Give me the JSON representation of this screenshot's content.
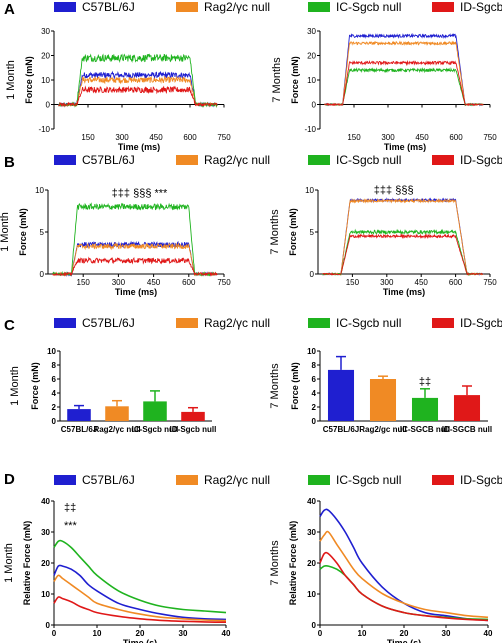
{
  "panels": [
    {
      "letter": "A"
    },
    {
      "letter": "B"
    },
    {
      "letter": "C"
    },
    {
      "letter": "D"
    }
  ],
  "legend": [
    {
      "name": "C57BL/6J",
      "color": "#1f1fd0"
    },
    {
      "name": "Rag2/γc null",
      "color": "#f08a24"
    },
    {
      "name": "IC-Sgcb null",
      "color": "#1fb31f"
    },
    {
      "name": "ID-Sgcb null",
      "color": "#e01818"
    }
  ],
  "chart_data": [
    {
      "id": "A1",
      "panel": "A",
      "type": "line",
      "sidelabel": "1 Month",
      "xlabel": "Time (ms)",
      "ylabel": "Force (mN)",
      "xlim": [
        0,
        750
      ],
      "ylim": [
        -10,
        30
      ],
      "xticks": [
        150,
        300,
        450,
        600,
        750
      ],
      "yticks": [
        -10,
        0,
        10,
        20,
        30
      ],
      "twitch": {
        "rise_start": 100,
        "rise_end": 125,
        "fall_start": 600,
        "fall_end": 625
      },
      "series": [
        {
          "name": "C57BL/6J",
          "plateau": 12,
          "noise": 1.2
        },
        {
          "name": "Rag2/γc null",
          "plateau": 10,
          "noise": 1.2
        },
        {
          "name": "IC-Sgcb null",
          "plateau": 19,
          "noise": 1.5
        },
        {
          "name": "ID-Sgcb null",
          "plateau": 6,
          "noise": 1.2
        }
      ]
    },
    {
      "id": "A2",
      "panel": "A",
      "type": "line",
      "sidelabel": "7 Months",
      "xlabel": "Time (ms)",
      "ylabel": "Force (mN)",
      "xlim": [
        0,
        750
      ],
      "ylim": [
        -10,
        30
      ],
      "xticks": [
        150,
        300,
        450,
        600,
        750
      ],
      "yticks": [
        -10,
        0,
        10,
        20,
        30
      ],
      "twitch": {
        "rise_start": 100,
        "rise_end": 130,
        "fall_start": 600,
        "fall_end": 640
      },
      "series": [
        {
          "name": "C57BL/6J",
          "plateau": 28,
          "noise": 0.6
        },
        {
          "name": "Rag2/γc null",
          "plateau": 25,
          "noise": 0.6
        },
        {
          "name": "IC-Sgcb null",
          "plateau": 14,
          "noise": 0.6
        },
        {
          "name": "ID-Sgcb null",
          "plateau": 17,
          "noise": 0.6
        }
      ]
    },
    {
      "id": "B1",
      "panel": "B",
      "type": "line",
      "sidelabel": "1 Month",
      "xlabel": "Time (ms)",
      "ylabel": "Force (mN)",
      "xlim": [
        0,
        750
      ],
      "ylim": [
        0,
        10
      ],
      "xticks": [
        150,
        300,
        450,
        600,
        750
      ],
      "yticks": [
        0,
        5,
        10
      ],
      "annotation": "‡‡‡  §§§    ***",
      "annotation_x": 390,
      "annotation_y": 9.2,
      "twitch": {
        "rise_start": 100,
        "rise_end": 125,
        "fall_start": 600,
        "fall_end": 625
      },
      "series": [
        {
          "name": "C57BL/6J",
          "plateau": 3.5,
          "noise": 0.3
        },
        {
          "name": "Rag2/γc null",
          "plateau": 3.3,
          "noise": 0.3
        },
        {
          "name": "IC-Sgcb null",
          "plateau": 8,
          "noise": 0.35
        },
        {
          "name": "ID-Sgcb null",
          "plateau": 1.6,
          "noise": 0.3
        }
      ]
    },
    {
      "id": "B2",
      "panel": "B",
      "type": "line",
      "sidelabel": "7 Months",
      "xlabel": "Time (ms)",
      "ylabel": "Force (mN)",
      "xlim": [
        0,
        750
      ],
      "ylim": [
        0,
        10
      ],
      "xticks": [
        150,
        300,
        450,
        600,
        750
      ],
      "yticks": [
        0,
        5,
        10
      ],
      "annotation": "‡‡‡  §§§",
      "annotation_x": 330,
      "annotation_y": 9.6,
      "twitch": {
        "rise_start": 100,
        "rise_end": 140,
        "fall_start": 600,
        "fall_end": 650
      },
      "series": [
        {
          "name": "C57BL/6J",
          "plateau": 8.8,
          "noise": 0.15
        },
        {
          "name": "Rag2/γc null",
          "plateau": 8.7,
          "noise": 0.15
        },
        {
          "name": "IC-Sgcb null",
          "plateau": 5,
          "noise": 0.2
        },
        {
          "name": "ID-Sgcb null",
          "plateau": 4.5,
          "noise": 0.15
        }
      ]
    },
    {
      "id": "C1",
      "panel": "C",
      "type": "bar",
      "sidelabel": "1 Month",
      "ylabel": "Force (mN)",
      "ylim": [
        0,
        10
      ],
      "yticks": [
        0,
        2,
        4,
        6,
        8,
        10
      ],
      "categories": [
        "C57BL/6J",
        "Rag2/γc null",
        "IC-Sgcb null",
        "ID-Sgcb null"
      ],
      "values": [
        1.7,
        2.1,
        2.8,
        1.3
      ],
      "errors": [
        0.5,
        0.8,
        1.5,
        0.6
      ]
    },
    {
      "id": "C2",
      "panel": "C",
      "type": "bar",
      "sidelabel": "7 Months",
      "ylabel": "Force (mN)",
      "ylim": [
        0,
        10
      ],
      "yticks": [
        0,
        2,
        4,
        6,
        8,
        10
      ],
      "categories": [
        "C57BL/6J",
        "Rag2/gc null",
        "IC-SGCB null",
        "ID-SGCB null"
      ],
      "values": [
        7.3,
        6.0,
        3.3,
        3.7
      ],
      "errors": [
        1.9,
        0.4,
        1.3,
        1.3
      ],
      "annotation": "‡‡",
      "annotation_index": 2
    },
    {
      "id": "D1",
      "panel": "D",
      "type": "line",
      "sidelabel": "1 Month",
      "xlabel": "Time (s)",
      "ylabel": "Relative Force (mN)",
      "xlim": [
        0,
        40
      ],
      "ylim": [
        0,
        40
      ],
      "xticks": [
        0,
        10,
        20,
        30,
        40
      ],
      "yticks": [
        0,
        10,
        20,
        30,
        40
      ],
      "annotation_lines": [
        "‡‡",
        "***"
      ],
      "series": [
        {
          "name": "C57BL/6J",
          "x": [
            0,
            1,
            2,
            4,
            6,
            8,
            10,
            15,
            20,
            25,
            30,
            35,
            40
          ],
          "y": [
            16,
            19,
            19,
            18,
            16,
            13,
            11,
            7,
            5,
            3.5,
            2.5,
            2,
            1.8
          ]
        },
        {
          "name": "Rag2/γc null",
          "x": [
            0,
            1,
            2,
            4,
            6,
            8,
            10,
            15,
            20,
            25,
            30,
            35,
            40
          ],
          "y": [
            14,
            16,
            15,
            13,
            11,
            9,
            7,
            5,
            3.5,
            2.5,
            2,
            1.6,
            1.4
          ]
        },
        {
          "name": "IC-Sgcb null",
          "x": [
            0,
            1,
            2,
            4,
            6,
            8,
            10,
            15,
            20,
            25,
            30,
            35,
            40
          ],
          "y": [
            25,
            27,
            27,
            25,
            22,
            19,
            16,
            11,
            8,
            6,
            5,
            4.5,
            4
          ]
        },
        {
          "name": "ID-Sgcb null",
          "x": [
            0,
            1,
            2,
            4,
            6,
            8,
            10,
            15,
            20,
            25,
            30,
            35,
            40
          ],
          "y": [
            7,
            9,
            8.5,
            7.5,
            6,
            5,
            4,
            2.8,
            2,
            1.5,
            1.2,
            1,
            0.9
          ]
        }
      ]
    },
    {
      "id": "D2",
      "panel": "D",
      "type": "line",
      "sidelabel": "7 Months",
      "xlabel": "Time (s)",
      "ylabel": "Relative Force (mN)",
      "xlim": [
        0,
        40
      ],
      "ylim": [
        0,
        40
      ],
      "xticks": [
        0,
        10,
        20,
        30,
        40
      ],
      "yticks": [
        0,
        10,
        20,
        30,
        40
      ],
      "series": [
        {
          "name": "C57BL/6J",
          "x": [
            0,
            1,
            2,
            4,
            6,
            8,
            10,
            15,
            20,
            25,
            30,
            35,
            40
          ],
          "y": [
            35,
            37,
            37,
            34,
            30,
            25,
            20,
            12,
            7,
            4,
            3,
            2,
            1.5
          ]
        },
        {
          "name": "Rag2/γc null",
          "x": [
            0,
            1,
            2,
            4,
            6,
            8,
            10,
            15,
            20,
            25,
            30,
            35,
            40
          ],
          "y": [
            27,
            29,
            30,
            26,
            22,
            18,
            15,
            10,
            7,
            5,
            4,
            3,
            2.5
          ]
        },
        {
          "name": "IC-Sgcb null",
          "x": [
            0,
            1,
            2,
            4,
            6,
            8,
            10,
            15,
            20,
            25,
            30,
            35,
            40
          ],
          "y": [
            18,
            19,
            19,
            18,
            16,
            13,
            10,
            6,
            4,
            3,
            2.5,
            2,
            1.8
          ]
        },
        {
          "name": "ID-Sgcb null",
          "x": [
            0,
            1,
            2,
            4,
            6,
            8,
            10,
            15,
            20,
            25,
            30,
            35,
            40
          ],
          "y": [
            20,
            23,
            23,
            20,
            16,
            13,
            10,
            6,
            4,
            3,
            2.3,
            1.8,
            1.5
          ]
        }
      ]
    }
  ]
}
